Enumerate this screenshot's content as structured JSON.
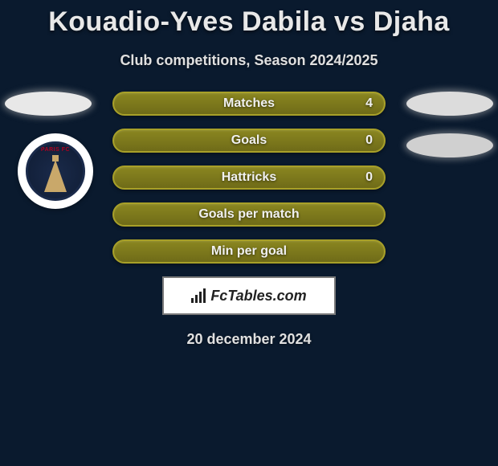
{
  "header": {
    "title": "Kouadio-Yves Dabila vs Djaha",
    "subtitle": "Club competitions, Season 2024/2025"
  },
  "stats": {
    "rows": [
      {
        "label": "Matches",
        "value": "4"
      },
      {
        "label": "Goals",
        "value": "0"
      },
      {
        "label": "Hattricks",
        "value": "0"
      },
      {
        "label": "Goals per match",
        "value": ""
      },
      {
        "label": "Min per goal",
        "value": ""
      }
    ],
    "bar_border_color": "#a8a028",
    "bar_fill_top": "#8a8620",
    "bar_fill_bottom": "#6f6b18",
    "label_color": "#f0f0f0",
    "label_fontsize": 16
  },
  "side_pods": {
    "pod_color": "#e8e8e8",
    "glow_color": "#b4b4b4"
  },
  "club_badge": {
    "name": "PARIS FC",
    "outer_bg": "#ffffff",
    "inner_bg": "#1a2a4a",
    "accent_color": "#c9a86a",
    "text_color": "#b00020"
  },
  "brand": {
    "text": "FcTables.com",
    "box_bg": "#ffffff",
    "box_border": "#7a7a7a",
    "text_color": "#222222"
  },
  "footer": {
    "date": "20 december 2024"
  },
  "theme": {
    "page_bg": "#0a1a2e",
    "title_color": "#e8e8e8",
    "title_fontsize": 34,
    "subtitle_fontsize": 18
  }
}
